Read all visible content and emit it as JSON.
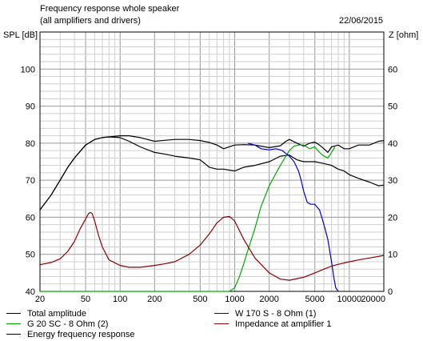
{
  "chart_data": {
    "type": "line",
    "title": "Frequency response whole speaker",
    "subtitle": "(all amplifiers and drivers)",
    "date": "22/06/2015",
    "ylabel": "SPL [dB]",
    "y2label": "Z [ohm]",
    "xscale": "log",
    "xlim": [
      20,
      20000
    ],
    "ylim": [
      40,
      110
    ],
    "y2lim": [
      0,
      70
    ],
    "grid": true,
    "x_tick_labels": [
      "20",
      "50",
      "100",
      "200",
      "500",
      "1000",
      "2000",
      "5000",
      "10000",
      "20000"
    ],
    "y_tick_labels": [
      "40",
      "50",
      "60",
      "70",
      "80",
      "90",
      "100"
    ],
    "y2_tick_labels": [
      "0",
      "10",
      "20",
      "30",
      "40",
      "50",
      "60"
    ],
    "legend_position": "bottom",
    "series": [
      {
        "name": "Total amplitude",
        "color": "#000000",
        "axis": "left",
        "x": [
          20,
          25,
          30,
          35,
          40,
          50,
          60,
          70,
          80,
          100,
          120,
          150,
          200,
          250,
          300,
          400,
          500,
          600,
          700,
          800,
          1000,
          1200,
          1500,
          2000,
          2500,
          2800,
          3000,
          3500,
          4000,
          4500,
          5000,
          5500,
          6000,
          6500,
          7000,
          8000,
          9000,
          10000,
          12000,
          15000,
          18000,
          20000
        ],
        "y": [
          62,
          66,
          70,
          73.5,
          76,
          79.5,
          81,
          81.5,
          81.7,
          82,
          82,
          81.5,
          80.5,
          80.8,
          81,
          81,
          80.7,
          80.2,
          79.5,
          78.5,
          79.5,
          79.6,
          79.5,
          78.8,
          79.3,
          80.5,
          81,
          80,
          79.2,
          80,
          80.3,
          79.5,
          78.5,
          77.5,
          79,
          79.5,
          78.5,
          78.5,
          79.5,
          79.5,
          80.5,
          80.7
        ]
      },
      {
        "name": "Energy frequency response",
        "color": "#000000",
        "axis": "left",
        "x": [
          20,
          25,
          30,
          35,
          40,
          50,
          60,
          70,
          80,
          100,
          120,
          150,
          200,
          250,
          300,
          400,
          500,
          600,
          700,
          800,
          1000,
          1200,
          1500,
          2000,
          2500,
          3000,
          3500,
          4000,
          5000,
          6000,
          7000,
          8000,
          9000,
          10000,
          12000,
          15000,
          18000,
          20000
        ],
        "y": [
          62,
          66,
          70,
          73.5,
          76,
          79.5,
          81,
          81.5,
          81.7,
          81.5,
          80.5,
          79,
          77.5,
          77,
          76.5,
          76,
          75.5,
          73.5,
          73,
          73,
          72.5,
          73.5,
          74,
          75,
          76.5,
          76.8,
          75.5,
          75,
          75,
          74.5,
          74,
          73,
          72.5,
          71.5,
          70.5,
          69.5,
          68.5,
          68.7
        ]
      },
      {
        "name": "W 170 S - 8 Ohm (1)",
        "color": "#0000cc",
        "axis": "left",
        "x": [
          1300,
          1500,
          1700,
          2000,
          2300,
          2600,
          3000,
          3300,
          3600,
          3800,
          4000,
          4300,
          4600,
          5000,
          5500,
          6000,
          6500,
          7000,
          7300,
          7600,
          8000
        ],
        "y": [
          80,
          79.5,
          78.5,
          78.2,
          78.5,
          78,
          76.5,
          75,
          72.5,
          70,
          67,
          64,
          63.5,
          63.5,
          62,
          58,
          54,
          48,
          44,
          41,
          40
        ]
      },
      {
        "name": "G 20 SC - 8 Ohm (2)",
        "color": "#00aa00",
        "axis": "left",
        "x": [
          20,
          100,
          500,
          900,
          1000,
          1100,
          1200,
          1300,
          1500,
          1700,
          2000,
          2300,
          2500,
          2800,
          3000,
          3300,
          3600,
          4000,
          4500,
          5000,
          5500,
          6000,
          6500,
          7000,
          7500
        ],
        "y": [
          40,
          40,
          40,
          40,
          41,
          44,
          47.5,
          51,
          57,
          63,
          68.5,
          72,
          74,
          76.5,
          78,
          79.2,
          79.5,
          79.5,
          78.5,
          79,
          77.5,
          76.5,
          76,
          77.5,
          79
        ]
      },
      {
        "name": "Impedance at amplifier 1",
        "color": "#8b0000",
        "axis": "right",
        "x": [
          20,
          25,
          30,
          35,
          40,
          45,
          50,
          53,
          55,
          57,
          60,
          65,
          70,
          80,
          100,
          120,
          150,
          200,
          250,
          300,
          400,
          500,
          600,
          700,
          800,
          900,
          1000,
          1200,
          1500,
          2000,
          2500,
          3000,
          4000,
          5000,
          6000,
          7000,
          8000,
          10000,
          12000,
          15000,
          20000
        ],
        "y": [
          7.2,
          7.8,
          8.8,
          10.8,
          13.5,
          17,
          19.5,
          21,
          21.3,
          21,
          19,
          15,
          12,
          8.5,
          7,
          6.5,
          6.5,
          7,
          7.5,
          8,
          10,
          12.5,
          15.5,
          18.5,
          20,
          20.2,
          19,
          14,
          9,
          5,
          3.3,
          3,
          3.8,
          5,
          6,
          6.8,
          7.3,
          8,
          8.5,
          9,
          9.7
        ]
      }
    ]
  }
}
